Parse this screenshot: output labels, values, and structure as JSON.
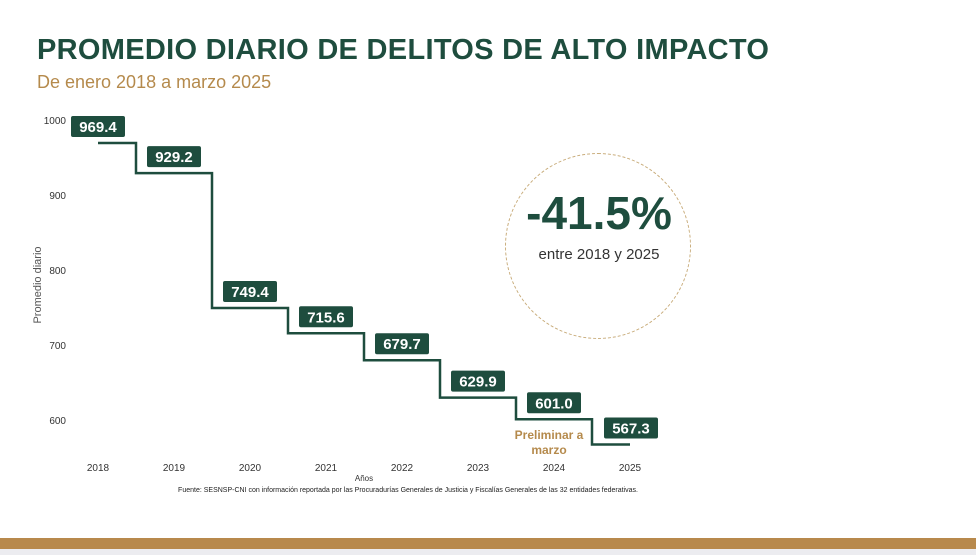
{
  "title": "PROMEDIO DIARIO DE DELITOS DE ALTO IMPACTO",
  "subtitle": "De enero 2018 a marzo 2025",
  "highlight": {
    "value": "-41.5%",
    "caption": "entre 2018 y 2025"
  },
  "colors": {
    "primary": "#1e4d3e",
    "accent": "#b58a4c"
  },
  "chart_data": {
    "type": "line",
    "step": true,
    "categories": [
      "2018",
      "2019",
      "2020",
      "2021",
      "2022",
      "2023",
      "2024",
      "2025"
    ],
    "values": [
      969.4,
      929.2,
      749.4,
      715.6,
      679.7,
      629.9,
      601.0,
      567.3
    ],
    "labels": [
      "969.4",
      "929.2",
      "749.4",
      "715.6",
      "679.7",
      "629.9",
      "601.0",
      "567.3"
    ],
    "xlabel": "Años",
    "ylabel": "Promedio diario",
    "yticks": [
      "600",
      "700",
      "800",
      "900",
      "1000"
    ],
    "ylim": [
      600,
      1000
    ],
    "annotation": [
      "Preliminar a",
      "marzo"
    ],
    "source": "Fuente: SESNSP-CNI con información reportada por las Procuradurías Generales de Justicia y Fiscalías Generales de las 32 entidades federativas."
  }
}
